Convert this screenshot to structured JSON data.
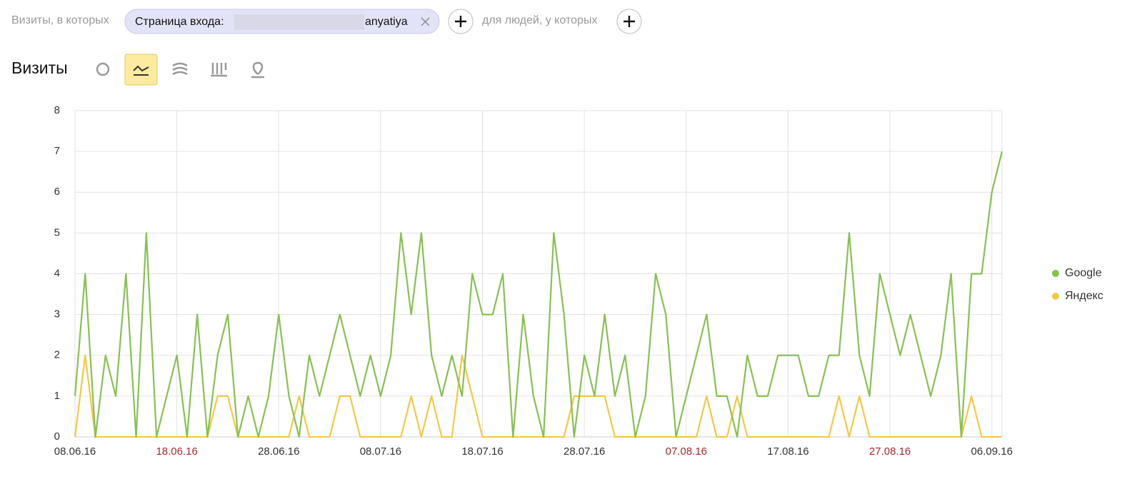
{
  "filter_bar": {
    "prefix": "Визиты, в которых",
    "chip_label": "Страница входа:",
    "chip_value": "anyatiya",
    "suffix": "для людей, у которых"
  },
  "chart_data": {
    "type": "line",
    "title": "Визиты",
    "categories": [
      "08.06.16",
      null,
      null,
      null,
      null,
      null,
      null,
      null,
      null,
      null,
      "18.06.16",
      null,
      null,
      null,
      null,
      null,
      null,
      null,
      null,
      null,
      "28.06.16",
      null,
      null,
      null,
      null,
      null,
      null,
      null,
      null,
      null,
      "08.07.16",
      null,
      null,
      null,
      null,
      null,
      null,
      null,
      null,
      null,
      "18.07.16",
      null,
      null,
      null,
      null,
      null,
      null,
      null,
      null,
      null,
      "28.07.16",
      null,
      null,
      null,
      null,
      null,
      null,
      null,
      null,
      null,
      "07.08.16",
      null,
      null,
      null,
      null,
      null,
      null,
      null,
      null,
      null,
      "17.08.16",
      null,
      null,
      null,
      null,
      null,
      null,
      null,
      null,
      null,
      "27.08.16",
      null,
      null,
      null,
      null,
      null,
      null,
      null,
      null,
      null,
      "06.09.16",
      null
    ],
    "xtick_label_colors": [
      "#333",
      "#a52a2a",
      "#333",
      "#333",
      "#333",
      "#333",
      "#a52a2a",
      "#333",
      "#a52a2a",
      "#333"
    ],
    "series": [
      {
        "name": "Google",
        "color": "#86c152",
        "values": [
          1,
          4,
          0,
          2,
          1,
          4,
          0,
          5,
          0,
          1,
          2,
          0,
          3,
          0,
          2,
          3,
          0,
          1,
          0,
          1,
          3,
          1,
          0,
          2,
          1,
          2,
          3,
          2,
          1,
          2,
          1,
          2,
          5,
          3,
          5,
          2,
          1,
          2,
          1,
          4,
          3,
          3,
          4,
          0,
          3,
          1,
          0,
          5,
          3,
          0,
          2,
          1,
          3,
          1,
          2,
          0,
          1,
          4,
          3,
          0,
          1,
          2,
          3,
          1,
          1,
          0,
          2,
          1,
          1,
          2,
          2,
          2,
          1,
          1,
          2,
          2,
          5,
          2,
          1,
          4,
          3,
          2,
          3,
          2,
          1,
          2,
          4,
          0,
          4,
          4,
          6,
          7
        ]
      },
      {
        "name": "Яндекс",
        "color": "#f5c842",
        "values": [
          0,
          2,
          0,
          0,
          0,
          0,
          0,
          0,
          0,
          0,
          0,
          0,
          0,
          0,
          1,
          1,
          0,
          0,
          0,
          0,
          0,
          0,
          1,
          0,
          0,
          0,
          1,
          1,
          0,
          0,
          0,
          0,
          0,
          1,
          0,
          1,
          0,
          0,
          2,
          1,
          0,
          0,
          0,
          0,
          0,
          0,
          0,
          0,
          0,
          1,
          1,
          1,
          1,
          0,
          0,
          0,
          0,
          0,
          0,
          0,
          0,
          0,
          1,
          0,
          0,
          1,
          0,
          0,
          0,
          0,
          0,
          0,
          0,
          0,
          0,
          1,
          0,
          1,
          0,
          0,
          0,
          0,
          0,
          0,
          0,
          0,
          0,
          0,
          1,
          0,
          0,
          0
        ]
      }
    ],
    "ylim": [
      0,
      8
    ],
    "yticks": [
      0,
      1,
      2,
      3,
      4,
      5,
      6,
      7,
      8
    ],
    "grid": true,
    "legend": "right"
  }
}
